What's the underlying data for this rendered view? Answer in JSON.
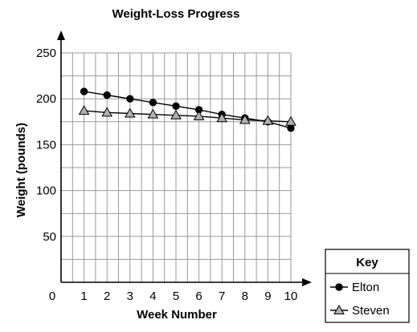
{
  "chart_data": {
    "type": "line",
    "title": "Weight-Loss Progress",
    "xlabel": "Week Number",
    "ylabel": "Weight (pounds)",
    "x": [
      1,
      2,
      3,
      4,
      5,
      6,
      7,
      8,
      9,
      10
    ],
    "xticks": [
      0,
      1,
      2,
      3,
      4,
      5,
      6,
      7,
      8,
      9,
      10
    ],
    "xlim": [
      0,
      10
    ],
    "yticks": [
      50,
      100,
      150,
      200,
      250
    ],
    "ylim": [
      0,
      250
    ],
    "grid": true,
    "legend": {
      "title": "Key",
      "placement": "bottom-right",
      "entries": [
        "Elton",
        "Steven"
      ]
    },
    "series": [
      {
        "name": "Elton",
        "marker": "circle",
        "color": "#000000",
        "values": [
          208,
          204,
          200,
          196,
          192,
          188,
          183,
          179,
          175,
          168
        ]
      },
      {
        "name": "Steven",
        "marker": "triangle",
        "color": "#b0b0b0",
        "values": [
          187,
          185,
          184,
          183,
          182,
          181,
          179,
          177,
          176,
          175
        ]
      }
    ]
  }
}
